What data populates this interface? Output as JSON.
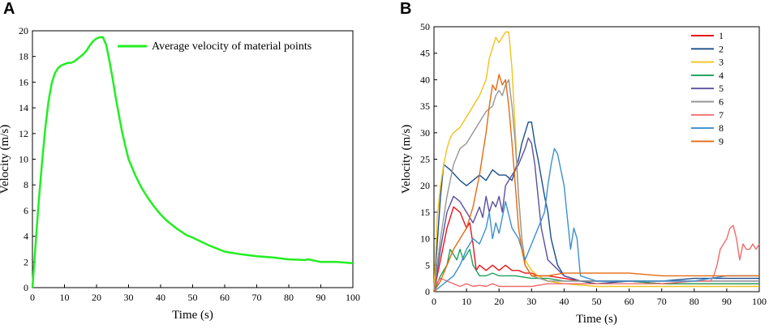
{
  "chart_data": [
    {
      "panel": "A",
      "type": "line",
      "title": "",
      "xlabel": "Time (s)",
      "ylabel": "Velocity (m/s)",
      "xlim": [
        0,
        100
      ],
      "ylim": [
        0,
        20
      ],
      "xticks": [
        "0",
        "10",
        "20",
        "30",
        "40",
        "50",
        "60",
        "70",
        "80",
        "90",
        "100"
      ],
      "yticks": [
        "0",
        "2",
        "4",
        "6",
        "8",
        "10",
        "12",
        "14",
        "16",
        "18",
        "20"
      ],
      "legend": "top-right",
      "series": [
        {
          "name": "Average velocity of material points",
          "color": "#22ee22",
          "x": [
            0,
            1,
            2,
            3,
            4,
            5,
            6,
            7,
            8,
            9,
            10,
            11,
            12,
            13,
            14,
            15,
            16,
            17,
            18,
            19,
            20,
            21,
            22,
            23,
            24,
            25,
            26,
            27,
            28,
            29,
            30,
            32,
            34,
            36,
            38,
            40,
            42,
            45,
            48,
            50,
            55,
            60,
            65,
            70,
            75,
            80,
            85,
            86,
            88,
            90,
            95,
            100
          ],
          "y": [
            0,
            3.5,
            6.8,
            9.8,
            12.4,
            14.5,
            15.9,
            16.7,
            17.1,
            17.3,
            17.4,
            17.5,
            17.5,
            17.6,
            17.8,
            18.0,
            18.2,
            18.5,
            18.9,
            19.2,
            19.4,
            19.5,
            19.5,
            18.9,
            17.7,
            16.3,
            14.8,
            13.4,
            12.1,
            11.0,
            10.0,
            8.8,
            7.8,
            7.0,
            6.3,
            5.7,
            5.2,
            4.6,
            4.1,
            3.9,
            3.3,
            2.8,
            2.6,
            2.45,
            2.35,
            2.2,
            2.15,
            2.2,
            2.1,
            2.0,
            2.0,
            1.9
          ]
        }
      ]
    },
    {
      "panel": "B",
      "type": "line",
      "title": "",
      "xlabel": "Time (s)",
      "ylabel": "Velocity (m/s)",
      "xlim": [
        0,
        100
      ],
      "ylim": [
        0,
        50
      ],
      "xticks": [
        "0",
        "10",
        "20",
        "30",
        "40",
        "50",
        "60",
        "70",
        "80",
        "90",
        "100"
      ],
      "yticks": [
        "0",
        "5",
        "10",
        "15",
        "20",
        "25",
        "30",
        "35",
        "40",
        "45",
        "50"
      ],
      "legend": "top-right",
      "series": [
        {
          "name": "1",
          "color": "#e8141c",
          "x": [
            0,
            2,
            4,
            6,
            8,
            10,
            11,
            12,
            13,
            14,
            16,
            18,
            20,
            22,
            24,
            26,
            28,
            30,
            32,
            35,
            40,
            45,
            50,
            55,
            60,
            70,
            80,
            90,
            100
          ],
          "y": [
            0,
            6,
            12,
            16,
            15,
            12,
            13,
            9,
            4,
            5,
            4,
            5,
            4,
            5,
            4,
            4,
            3.5,
            3.5,
            3,
            3,
            2.5,
            2,
            2,
            2,
            2,
            1.5,
            1.5,
            1.5,
            1.5
          ]
        },
        {
          "name": "2",
          "color": "#1a4f8c",
          "x": [
            0,
            2,
            3,
            5,
            8,
            10,
            12,
            14,
            16,
            18,
            20,
            22,
            24,
            26,
            27,
            28,
            29,
            30,
            31,
            32,
            34,
            35,
            36,
            38,
            40,
            45,
            50,
            60,
            70,
            80,
            90,
            100
          ],
          "y": [
            0,
            18,
            24,
            23,
            21,
            20,
            21,
            22,
            21,
            23,
            22,
            22,
            21,
            25,
            28,
            30,
            32,
            32,
            28,
            25,
            18,
            15,
            10,
            5,
            3,
            2,
            1.5,
            2,
            2,
            2.5,
            2.5,
            2.5
          ]
        },
        {
          "name": "3",
          "color": "#f2c21a",
          "x": [
            0,
            1,
            2,
            3,
            4,
            5,
            6,
            8,
            10,
            12,
            14,
            16,
            17,
            18,
            19,
            20,
            21,
            22,
            23,
            24,
            25,
            26,
            27,
            28,
            30,
            32,
            35,
            40,
            50,
            60,
            70,
            80,
            90,
            100
          ],
          "y": [
            0,
            14,
            20,
            24,
            27,
            29,
            30,
            31,
            33,
            35,
            37,
            40,
            44,
            46,
            48,
            47,
            48,
            49,
            49,
            42,
            30,
            18,
            10,
            6,
            4,
            3,
            2,
            1.5,
            1,
            1,
            1,
            1,
            1,
            1
          ]
        },
        {
          "name": "4",
          "color": "#1aa15a",
          "x": [
            0,
            2,
            4,
            5,
            6,
            7,
            8,
            9,
            10,
            11,
            12,
            13,
            14,
            16,
            18,
            20,
            25,
            30,
            35,
            40,
            45,
            50,
            60,
            70,
            80,
            90,
            100
          ],
          "y": [
            0,
            3,
            5,
            8,
            7,
            6,
            8,
            6,
            7,
            8,
            5,
            4,
            3,
            3,
            3.5,
            3,
            3,
            2.5,
            2.5,
            2,
            2,
            2,
            2,
            1.5,
            1.5,
            1.5,
            1.5
          ]
        },
        {
          "name": "5",
          "color": "#5c4fa0",
          "x": [
            0,
            2,
            4,
            6,
            8,
            10,
            12,
            14,
            15,
            16,
            17,
            18,
            19,
            20,
            21,
            22,
            24,
            26,
            28,
            29,
            30,
            31,
            32,
            33,
            35,
            40,
            45,
            50,
            60,
            70,
            80,
            90,
            100
          ],
          "y": [
            0,
            8,
            15,
            18,
            17,
            15,
            13,
            16,
            14,
            18,
            15,
            17,
            16,
            18,
            15,
            20,
            22,
            24,
            27,
            29,
            28,
            24,
            18,
            12,
            6,
            3,
            2,
            2,
            2,
            2,
            2,
            2,
            2
          ]
        },
        {
          "name": "6",
          "color": "#969696",
          "x": [
            0,
            2,
            4,
            6,
            8,
            10,
            12,
            14,
            16,
            18,
            19,
            20,
            21,
            22,
            23,
            24,
            25,
            26,
            27,
            28,
            30,
            35,
            40,
            50,
            60,
            70,
            80,
            90,
            100
          ],
          "y": [
            0,
            10,
            18,
            24,
            27,
            28,
            30,
            32,
            34,
            35,
            37,
            38,
            37,
            39,
            40,
            35,
            28,
            18,
            10,
            5,
            3,
            2,
            2,
            2,
            2,
            2,
            2,
            2,
            2
          ]
        },
        {
          "name": "7",
          "color": "#ef6c6c",
          "x": [
            0,
            2,
            4,
            6,
            8,
            10,
            12,
            14,
            16,
            18,
            20,
            25,
            30,
            35,
            40,
            45,
            50,
            55,
            60,
            70,
            80,
            85,
            86,
            87,
            88,
            90,
            91,
            92,
            93,
            94,
            95,
            96,
            97,
            98,
            99,
            100
          ],
          "y": [
            1,
            2.5,
            2,
            1.5,
            1,
            1.5,
            1,
            1.2,
            1,
            1.5,
            1,
            1,
            1,
            1.5,
            1.5,
            1.5,
            1.5,
            1.5,
            1.5,
            1.5,
            2,
            2,
            3,
            5,
            8,
            10,
            12,
            12.5,
            10,
            6,
            9,
            8,
            8,
            9,
            8,
            9
          ]
        },
        {
          "name": "8",
          "color": "#3d8fcf",
          "x": [
            0,
            2,
            4,
            6,
            8,
            10,
            12,
            14,
            16,
            17,
            18,
            19,
            20,
            21,
            22,
            24,
            26,
            28,
            30,
            32,
            34,
            35,
            36,
            37,
            38,
            40,
            41,
            42,
            43,
            44,
            45,
            50,
            60,
            70,
            80,
            90,
            100
          ],
          "y": [
            0,
            1,
            2,
            3,
            5,
            8,
            10,
            9,
            12,
            15,
            10,
            13,
            11,
            14,
            17,
            12,
            10,
            6,
            9,
            12,
            15,
            20,
            24,
            27,
            26,
            20,
            14,
            8,
            12,
            10,
            3,
            2,
            2,
            2,
            2,
            3,
            3
          ]
        },
        {
          "name": "9",
          "color": "#e46a12",
          "x": [
            0,
            2,
            4,
            6,
            8,
            10,
            12,
            14,
            15,
            16,
            17,
            18,
            19,
            20,
            21,
            22,
            23,
            24,
            25,
            26,
            27,
            28,
            30,
            32,
            35,
            40,
            50,
            60,
            70,
            80,
            90,
            100
          ],
          "y": [
            0,
            2,
            5,
            8,
            10,
            12,
            16,
            22,
            26,
            30,
            35,
            39,
            38,
            41,
            39,
            40,
            35,
            28,
            20,
            12,
            8,
            5,
            3,
            3,
            3,
            3.5,
            3.5,
            3.5,
            3,
            3,
            3,
            3
          ]
        }
      ]
    }
  ]
}
